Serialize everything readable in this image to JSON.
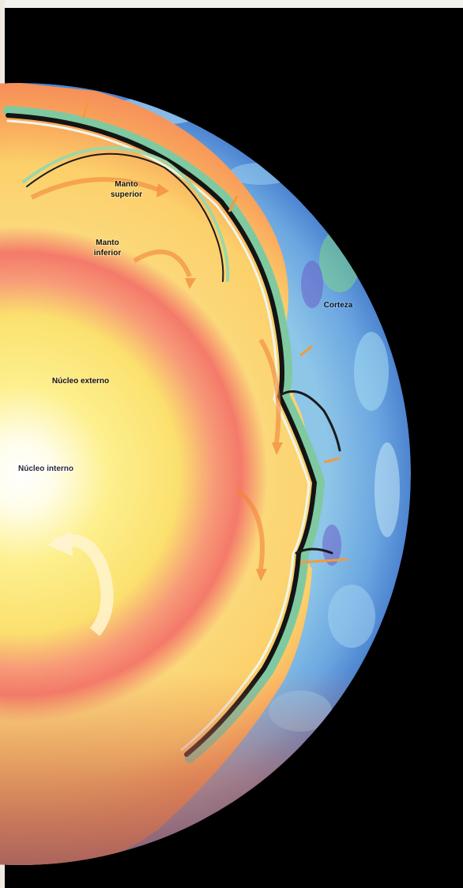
{
  "labels": {
    "upper_mantle_line1": "Manto",
    "upper_mantle_line2": "superior",
    "lower_mantle_line1": "Manto",
    "lower_mantle_line2": "inferior",
    "crust": "Corteza",
    "outer_core": "Núcleo externo",
    "inner_core": "Núcleo interno"
  },
  "colors": {
    "background": "#000000",
    "inner_core": "#ffffff",
    "outer_core": "#fbe58a",
    "core_boundary": "#f47a6a",
    "mantle": "#f6b06a",
    "crust": "#5a8fd8",
    "plate_stripes": [
      "#e9f3e0",
      "#1a1a1a",
      "#7fc9a0"
    ]
  }
}
